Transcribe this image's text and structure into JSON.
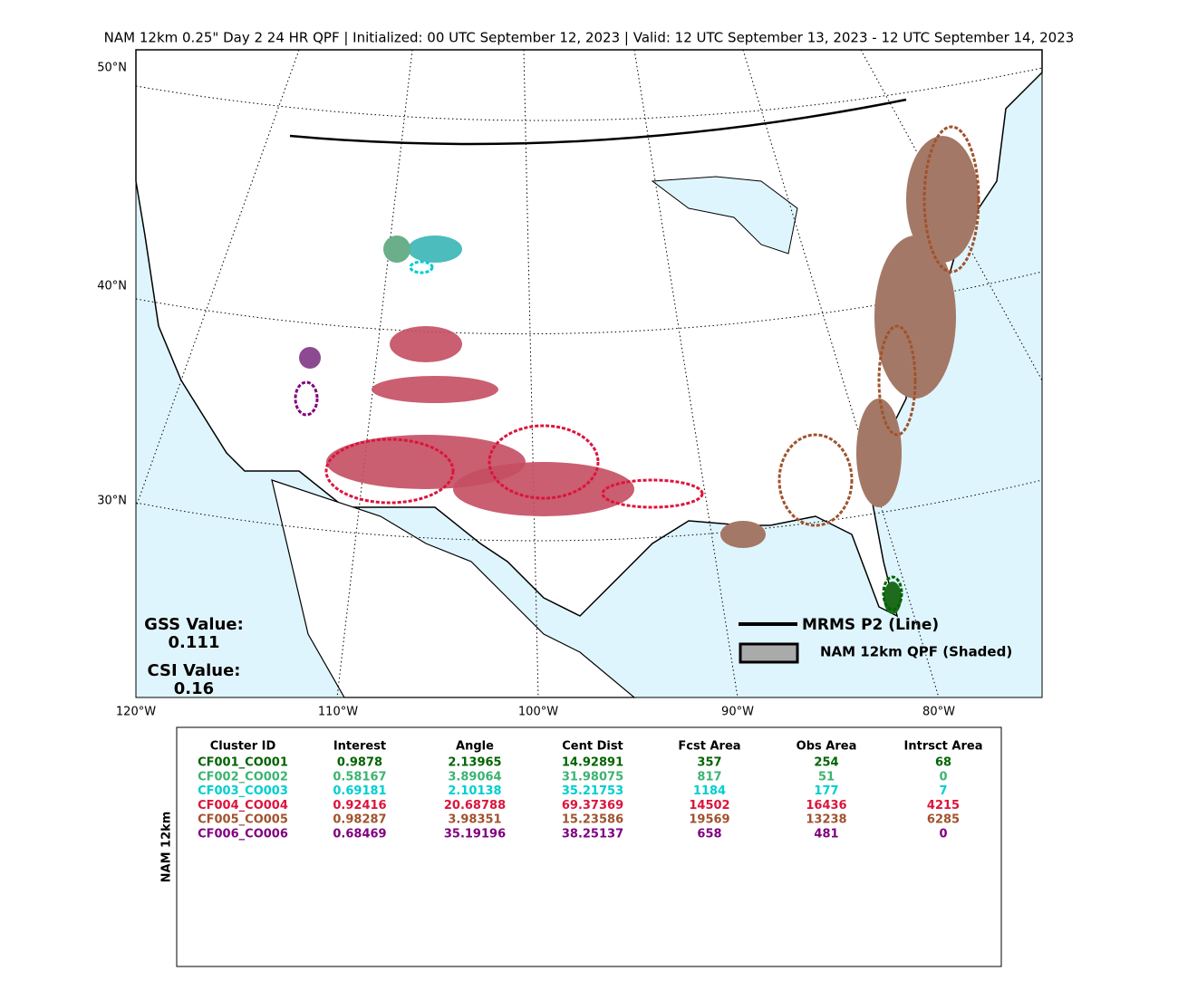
{
  "title": "NAM 12km 0.25\" Day 2 24 HR QPF | Initialized: 00 UTC September 12, 2023 | Valid: 12 UTC September 13, 2023 - 12 UTC September 14, 2023",
  "map": {
    "lat_labels": [
      "50°N",
      "40°N",
      "30°N"
    ],
    "lon_labels": [
      "120°W",
      "110°W",
      "100°W",
      "90°W",
      "80°W"
    ],
    "gss_label": "GSS Value:",
    "gss_value": "0.111",
    "csi_label": "CSI Value:",
    "csi_value": "0.16",
    "legend": {
      "line": "MRMS P2 (Line)",
      "shaded": "NAM 12km QPF (Shaded)"
    }
  },
  "table": {
    "side_label": "NAM 12km",
    "columns": [
      "Cluster ID",
      "Interest",
      "Angle",
      "Cent Dist",
      "Fcst Area",
      "Obs Area",
      "Intrsct Area"
    ],
    "rows": [
      {
        "color": "#006400",
        "cells": [
          "CF001_CO001",
          "0.9878",
          "2.13965",
          "14.92891",
          "357",
          "254",
          "68"
        ]
      },
      {
        "color": "#3cb371",
        "cells": [
          "CF002_CO002",
          "0.58167",
          "3.89064",
          "31.98075",
          "817",
          "51",
          "0"
        ]
      },
      {
        "color": "#00ced1",
        "cells": [
          "CF003_CO003",
          "0.69181",
          "2.10138",
          "35.21753",
          "1184",
          "177",
          "7"
        ]
      },
      {
        "color": "#dc143c",
        "cells": [
          "CF004_CO004",
          "0.92416",
          "20.68788",
          "69.37369",
          "14502",
          "16436",
          "4215"
        ]
      },
      {
        "color": "#a0522d",
        "cells": [
          "CF005_CO005",
          "0.98287",
          "3.98351",
          "15.23586",
          "19569",
          "13238",
          "6285"
        ]
      },
      {
        "color": "#800080",
        "cells": [
          "CF006_CO006",
          "0.68469",
          "35.19196",
          "38.25137",
          "658",
          "481",
          "0"
        ]
      }
    ]
  }
}
